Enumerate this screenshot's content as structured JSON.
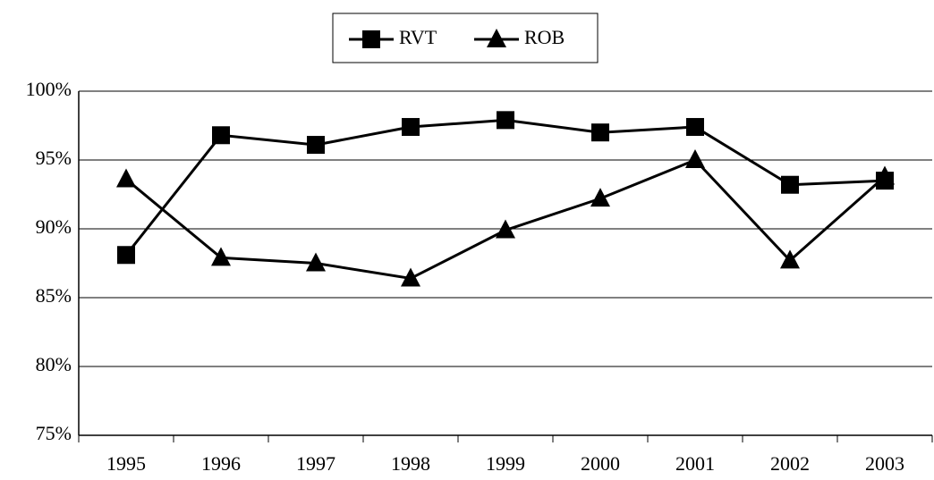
{
  "chart_data": {
    "type": "line",
    "categories": [
      "1995",
      "1996",
      "1997",
      "1998",
      "1999",
      "2000",
      "2001",
      "2002",
      "2003"
    ],
    "series": [
      {
        "name": "RVT",
        "color": "#000000",
        "marker": "square",
        "values": [
          88.1,
          96.8,
          96.1,
          97.4,
          97.9,
          97.0,
          97.4,
          93.2,
          93.5
        ]
      },
      {
        "name": "ROB",
        "color": "#000000",
        "marker": "triangle",
        "values": [
          93.6,
          87.9,
          87.5,
          86.4,
          89.9,
          92.2,
          95.0,
          87.7,
          93.8
        ]
      }
    ],
    "ylim": [
      75,
      100
    ],
    "yticks": [
      {
        "value": 75,
        "label": "75%"
      },
      {
        "value": 80,
        "label": "80%"
      },
      {
        "value": 85,
        "label": "85%"
      },
      {
        "value": 90,
        "label": "90%"
      },
      {
        "value": 95,
        "label": "95%"
      },
      {
        "value": 100,
        "label": "100%"
      }
    ],
    "grid": true,
    "legend": "top"
  }
}
